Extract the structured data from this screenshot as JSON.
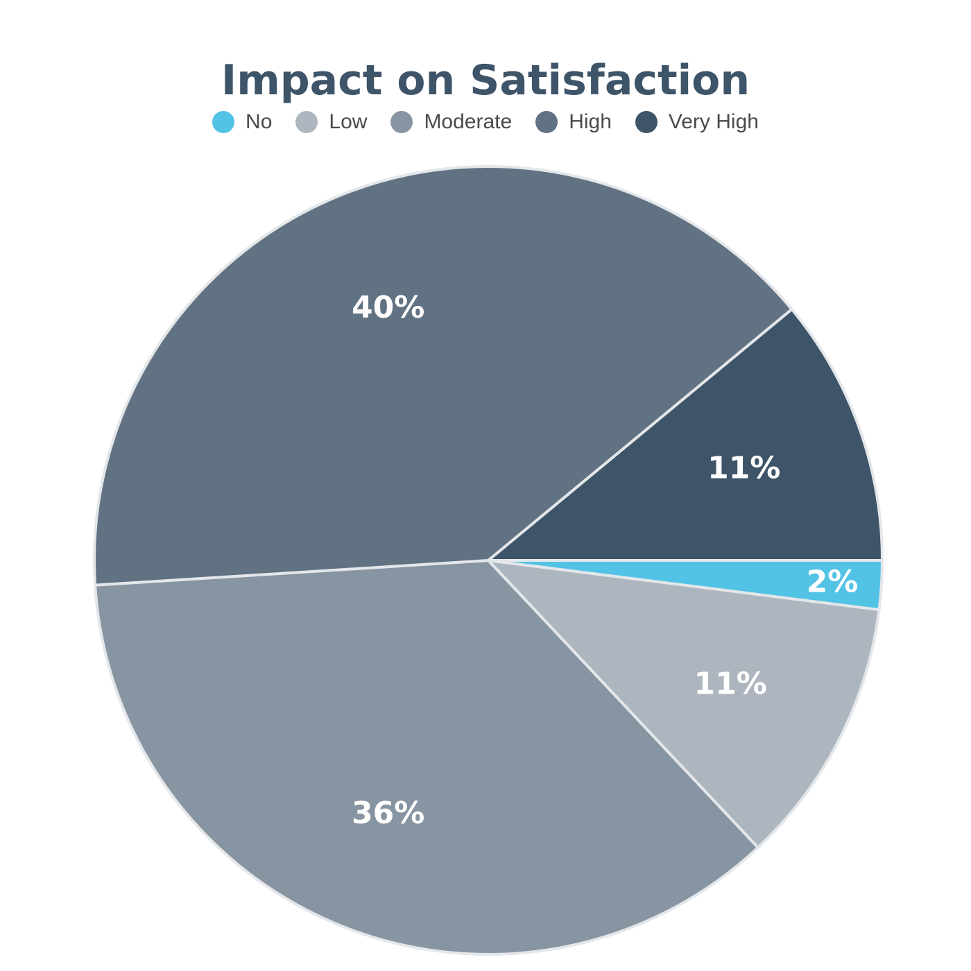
{
  "chart_data": {
    "type": "pie",
    "title": "Impact on Satisfaction",
    "legend_position": "top",
    "categories": [
      "No",
      "Low",
      "Moderate",
      "High",
      "Very High"
    ],
    "values": [
      2,
      11,
      36,
      40,
      11
    ],
    "value_labels": [
      "2%",
      "11%",
      "36%",
      "40%",
      "11%"
    ],
    "colors": [
      "#52c2e5",
      "#adb6bf",
      "#8794a1",
      "#617282",
      "#3e5468"
    ]
  }
}
